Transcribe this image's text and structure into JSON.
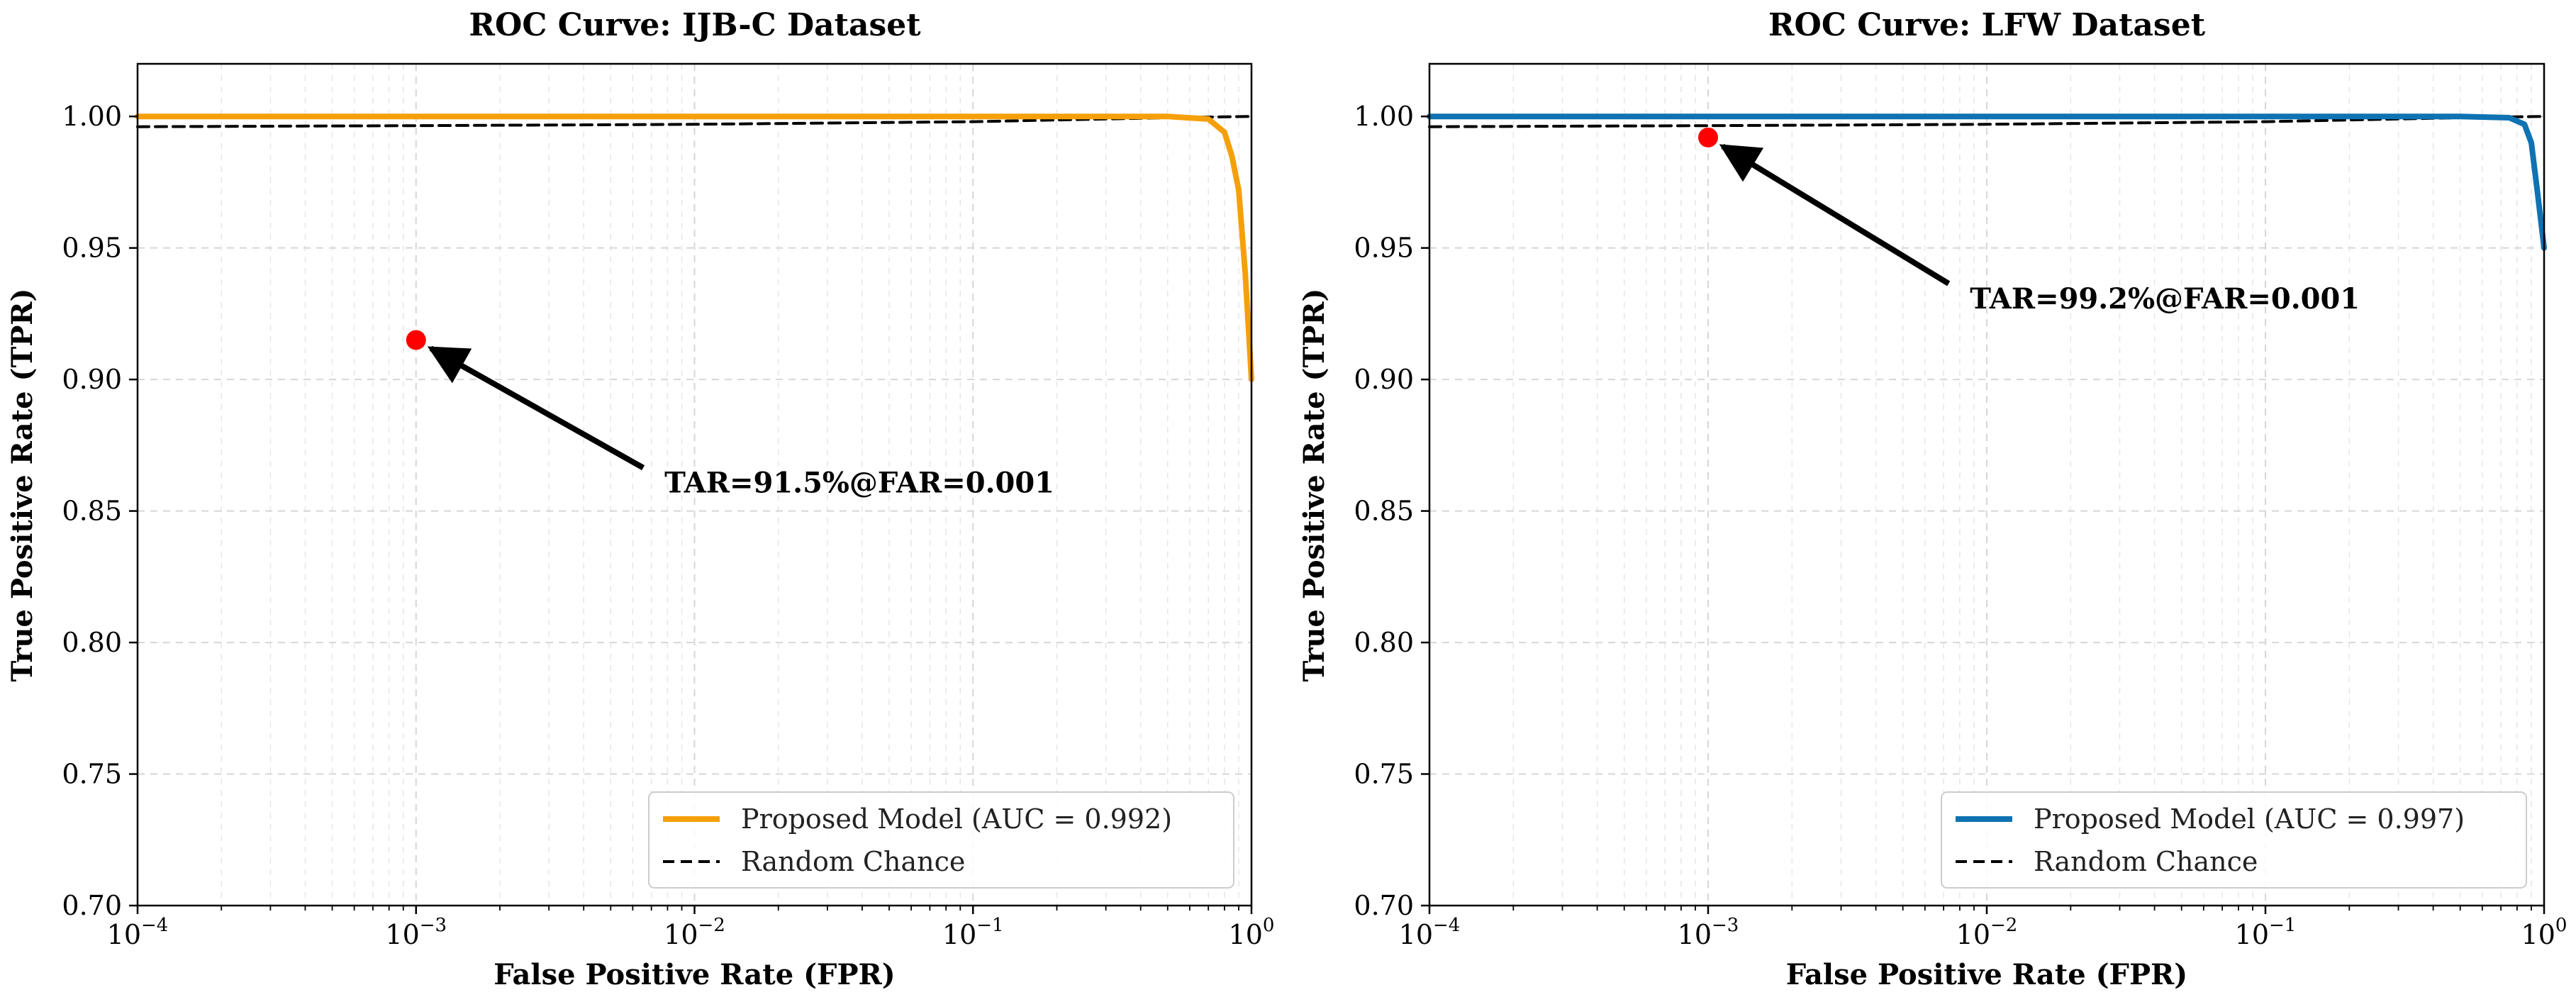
{
  "chart_data": [
    {
      "type": "line",
      "title": "ROC Curve: IJB-C Dataset",
      "xlabel": "False Positive Rate (FPR)",
      "ylabel": "True Positive Rate (TPR)",
      "xscale": "log",
      "xlim": [
        0.0001,
        1
      ],
      "ylim": [
        0.7,
        1.02
      ],
      "x_ticks": [
        {
          "base": "10",
          "exp": "−4",
          "value": 0.0001
        },
        {
          "base": "10",
          "exp": "−3",
          "value": 0.001
        },
        {
          "base": "10",
          "exp": "−2",
          "value": 0.01
        },
        {
          "base": "10",
          "exp": "−1",
          "value": 0.1
        },
        {
          "base": "10",
          "exp": "0",
          "value": 1
        }
      ],
      "y_ticks": [
        {
          "label": "0.70",
          "value": 0.7
        },
        {
          "label": "0.75",
          "value": 0.75
        },
        {
          "label": "0.80",
          "value": 0.8
        },
        {
          "label": "0.85",
          "value": 0.85
        },
        {
          "label": "0.90",
          "value": 0.9
        },
        {
          "label": "0.95",
          "value": 0.95
        },
        {
          "label": "1.00",
          "value": 1.0
        }
      ],
      "grid": true,
      "legend_position": "bottom-right",
      "series": [
        {
          "name": "Proposed Model (AUC = 0.992)",
          "color": "#f5a00a",
          "style": "solid",
          "x": [
            0.0001,
            0.001,
            0.01,
            0.1,
            0.5,
            0.7,
            0.8,
            0.85,
            0.9,
            0.95,
            1.0
          ],
          "y": [
            1.0,
            1.0,
            1.0,
            1.0,
            1.0,
            0.999,
            0.994,
            0.985,
            0.972,
            0.94,
            0.9
          ]
        },
        {
          "name": "Random Chance",
          "color": "#000000",
          "style": "dashed",
          "x": [
            0.0001,
            0.001,
            0.01,
            0.1,
            0.5,
            1.0
          ],
          "y": [
            0.9961,
            0.9965,
            0.997,
            0.998,
            0.9995,
            1.0
          ]
        }
      ],
      "highlight_point": {
        "x": 0.001,
        "y": 0.915,
        "color": "#ff0000"
      },
      "annotation": {
        "text": "TAR=91.5%@FAR=0.001",
        "text_x": 0.0078,
        "text_y": 0.857
      }
    },
    {
      "type": "line",
      "title": "ROC Curve: LFW Dataset",
      "xlabel": "False Positive Rate (FPR)",
      "ylabel": "True Positive Rate (TPR)",
      "xscale": "log",
      "xlim": [
        0.0001,
        1
      ],
      "ylim": [
        0.7,
        1.02
      ],
      "x_ticks": [
        {
          "base": "10",
          "exp": "−4",
          "value": 0.0001
        },
        {
          "base": "10",
          "exp": "−3",
          "value": 0.001
        },
        {
          "base": "10",
          "exp": "−2",
          "value": 0.01
        },
        {
          "base": "10",
          "exp": "−1",
          "value": 0.1
        },
        {
          "base": "10",
          "exp": "0",
          "value": 1
        }
      ],
      "y_ticks": [
        {
          "label": "0.70",
          "value": 0.7
        },
        {
          "label": "0.75",
          "value": 0.75
        },
        {
          "label": "0.80",
          "value": 0.8
        },
        {
          "label": "0.85",
          "value": 0.85
        },
        {
          "label": "0.90",
          "value": 0.9
        },
        {
          "label": "0.95",
          "value": 0.95
        },
        {
          "label": "1.00",
          "value": 1.0
        }
      ],
      "grid": true,
      "legend_position": "bottom-right",
      "series": [
        {
          "name": "Proposed Model (AUC = 0.997)",
          "color": "#0e72b3",
          "style": "solid",
          "x": [
            0.0001,
            0.001,
            0.01,
            0.1,
            0.5,
            0.75,
            0.85,
            0.9,
            0.95,
            1.0
          ],
          "y": [
            1.0,
            1.0,
            1.0,
            1.0,
            1.0,
            0.9995,
            0.997,
            0.99,
            0.97,
            0.95
          ]
        },
        {
          "name": "Random Chance",
          "color": "#000000",
          "style": "dashed",
          "x": [
            0.0001,
            0.001,
            0.01,
            0.1,
            0.5,
            1.0
          ],
          "y": [
            0.9961,
            0.9965,
            0.997,
            0.998,
            0.9995,
            1.0
          ]
        }
      ],
      "highlight_point": {
        "x": 0.001,
        "y": 0.992,
        "color": "#ff0000"
      },
      "annotation": {
        "text": "TAR=99.2%@FAR=0.001",
        "text_x": 0.0087,
        "text_y": 0.927
      }
    }
  ]
}
